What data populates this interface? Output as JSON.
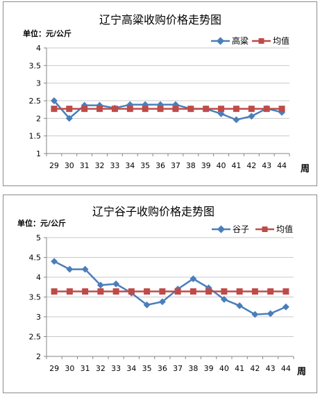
{
  "chart_data": [
    {
      "type": "line",
      "title": "辽宁高粱收购价格走势图",
      "unit_label": "单位：元/公斤",
      "xlabel": "周",
      "ylim": [
        1,
        4
      ],
      "yticks": [
        "1",
        "1.5",
        "2",
        "2.5",
        "3",
        "3.5",
        "4"
      ],
      "categories": [
        "29",
        "30",
        "31",
        "32",
        "33",
        "34",
        "35",
        "36",
        "37",
        "38",
        "39",
        "40",
        "41",
        "42",
        "43",
        "44"
      ],
      "grid": "horizontal",
      "legend_position": "top-right",
      "series": [
        {
          "name": "高粱",
          "color": "#4a7ebb",
          "marker": "diamond",
          "values": [
            2.5,
            2.0,
            2.37,
            2.37,
            2.29,
            2.39,
            2.39,
            2.39,
            2.39,
            2.27,
            2.27,
            2.13,
            1.96,
            2.06,
            2.28,
            2.17
          ]
        },
        {
          "name": "均值",
          "color": "#be4b48",
          "marker": "square",
          "values": [
            2.27,
            2.27,
            2.27,
            2.27,
            2.27,
            2.27,
            2.27,
            2.27,
            2.27,
            2.27,
            2.27,
            2.27,
            2.27,
            2.27,
            2.27,
            2.27
          ]
        }
      ]
    },
    {
      "type": "line",
      "title": "辽宁谷子收购价格走势图",
      "unit_label": "单位：元/公斤",
      "xlabel": "周",
      "ylim": [
        2,
        5
      ],
      "yticks": [
        "2",
        "2.5",
        "3",
        "3.5",
        "4",
        "4.5",
        "5"
      ],
      "categories": [
        "29",
        "30",
        "31",
        "32",
        "33",
        "34",
        "35",
        "36",
        "37",
        "38",
        "39",
        "40",
        "41",
        "42",
        "43",
        "44"
      ],
      "grid": "horizontal",
      "legend_position": "top-right",
      "series": [
        {
          "name": "谷子",
          "color": "#4a7ebb",
          "marker": "diamond",
          "values": [
            4.4,
            4.2,
            4.2,
            3.8,
            3.83,
            3.6,
            3.3,
            3.38,
            3.7,
            3.96,
            3.73,
            3.44,
            3.28,
            3.06,
            3.08,
            3.25
          ]
        },
        {
          "name": "均值",
          "color": "#be4b48",
          "marker": "square",
          "values": [
            3.64,
            3.64,
            3.64,
            3.64,
            3.64,
            3.64,
            3.64,
            3.64,
            3.64,
            3.64,
            3.64,
            3.64,
            3.64,
            3.64,
            3.64,
            3.64
          ]
        }
      ]
    }
  ]
}
